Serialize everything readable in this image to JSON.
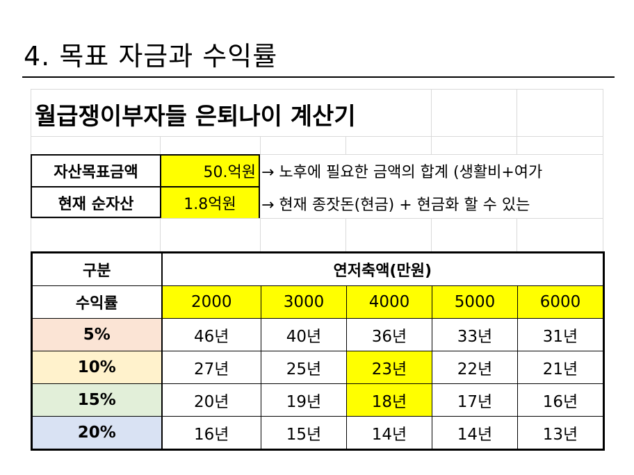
{
  "page": {
    "title": "4. 목표 자금과 수익률"
  },
  "calculator": {
    "title": "월급쟁이부자들 은퇴나이 계산기",
    "asset_target_label": "자산목표금액",
    "asset_target_value": "50.억원",
    "asset_target_note": "→ 노후에 필요한 금액의 합계 (생활비+여가",
    "net_asset_label": "현재 순자산",
    "net_asset_value": "1.8억원",
    "net_asset_note": "→ 현재 종잣돈(현금) + 현금화 할 수 있는"
  },
  "table": {
    "category_header": "구분",
    "savings_header": "연저축액(만원)",
    "return_header": "수익률",
    "amounts": [
      "2000",
      "3000",
      "4000",
      "5000",
      "6000"
    ],
    "rows": [
      {
        "rate": "5%",
        "color": "#fbe4d5",
        "years": [
          "46년",
          "40년",
          "36년",
          "33년",
          "31년"
        ]
      },
      {
        "rate": "10%",
        "color": "#fff2cc",
        "years": [
          "27년",
          "25년",
          "23년",
          "22년",
          "21년"
        ]
      },
      {
        "rate": "15%",
        "color": "#e2efd9",
        "years": [
          "20년",
          "19년",
          "18년",
          "17년",
          "16년"
        ]
      },
      {
        "rate": "20%",
        "color": "#d9e2f3",
        "years": [
          "16년",
          "15년",
          "14년",
          "14년",
          "13년"
        ]
      }
    ],
    "highlight_color": "#ffff00"
  }
}
